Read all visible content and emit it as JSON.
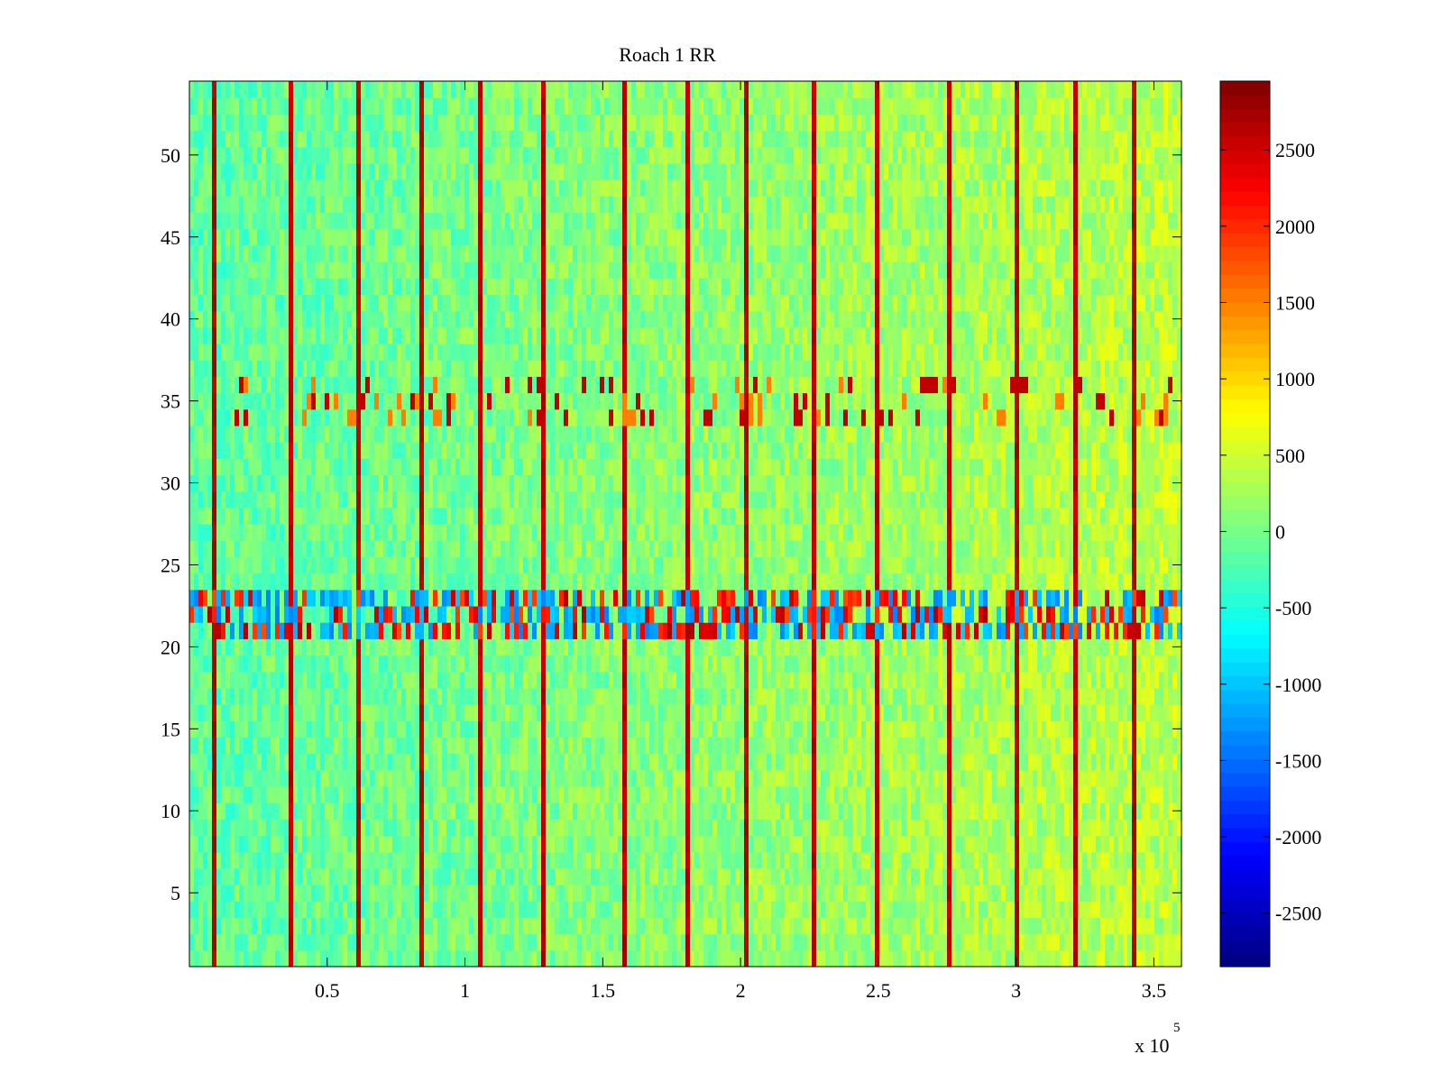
{
  "chart_data": {
    "type": "heatmap",
    "title": "Roach 1 RR",
    "xlabel": "",
    "ylabel": "",
    "x_axis": {
      "range": [
        0,
        360000
      ],
      "ticks": [
        50000,
        100000,
        150000,
        200000,
        250000,
        300000,
        350000
      ],
      "tick_labels": [
        "0.5",
        "1",
        "1.5",
        "2",
        "2.5",
        "3",
        "3.5"
      ],
      "exponent_base": "x 10",
      "exponent_power": "5"
    },
    "y_axis": {
      "range": [
        0.5,
        54.5
      ],
      "ticks": [
        5,
        10,
        15,
        20,
        25,
        30,
        35,
        40,
        45,
        50
      ],
      "tick_labels": [
        "5",
        "10",
        "15",
        "20",
        "25",
        "30",
        "35",
        "40",
        "45",
        "50"
      ]
    },
    "colorbar": {
      "colormap": "jet",
      "range": [
        -2850,
        2950
      ],
      "ticks": [
        2500,
        2000,
        1500,
        1000,
        500,
        0,
        -500,
        -1000,
        -1500,
        -2000,
        -2500
      ],
      "tick_labels": [
        "2500",
        "2000",
        "1500",
        "1000",
        "500",
        "0",
        "-500",
        "-1000",
        "-1500",
        "-2000",
        "-2500"
      ]
    },
    "rows": 54,
    "baseline_value": -150,
    "spike_columns_x": [
      8000,
      36000,
      60000,
      83000,
      105000,
      128000,
      157000,
      180000,
      201000,
      225000,
      248000,
      275000,
      300000,
      321000,
      342000
    ],
    "spike_value": 2600,
    "high_variance_bands": [
      {
        "rows": [
          34,
          36
        ],
        "character": "sparse extreme values"
      },
      {
        "rows": [
          21,
          23
        ],
        "character": "dense alternating extreme values"
      }
    ],
    "trend": "values increase slightly toward larger x, warmer (yellow) on the right half"
  }
}
